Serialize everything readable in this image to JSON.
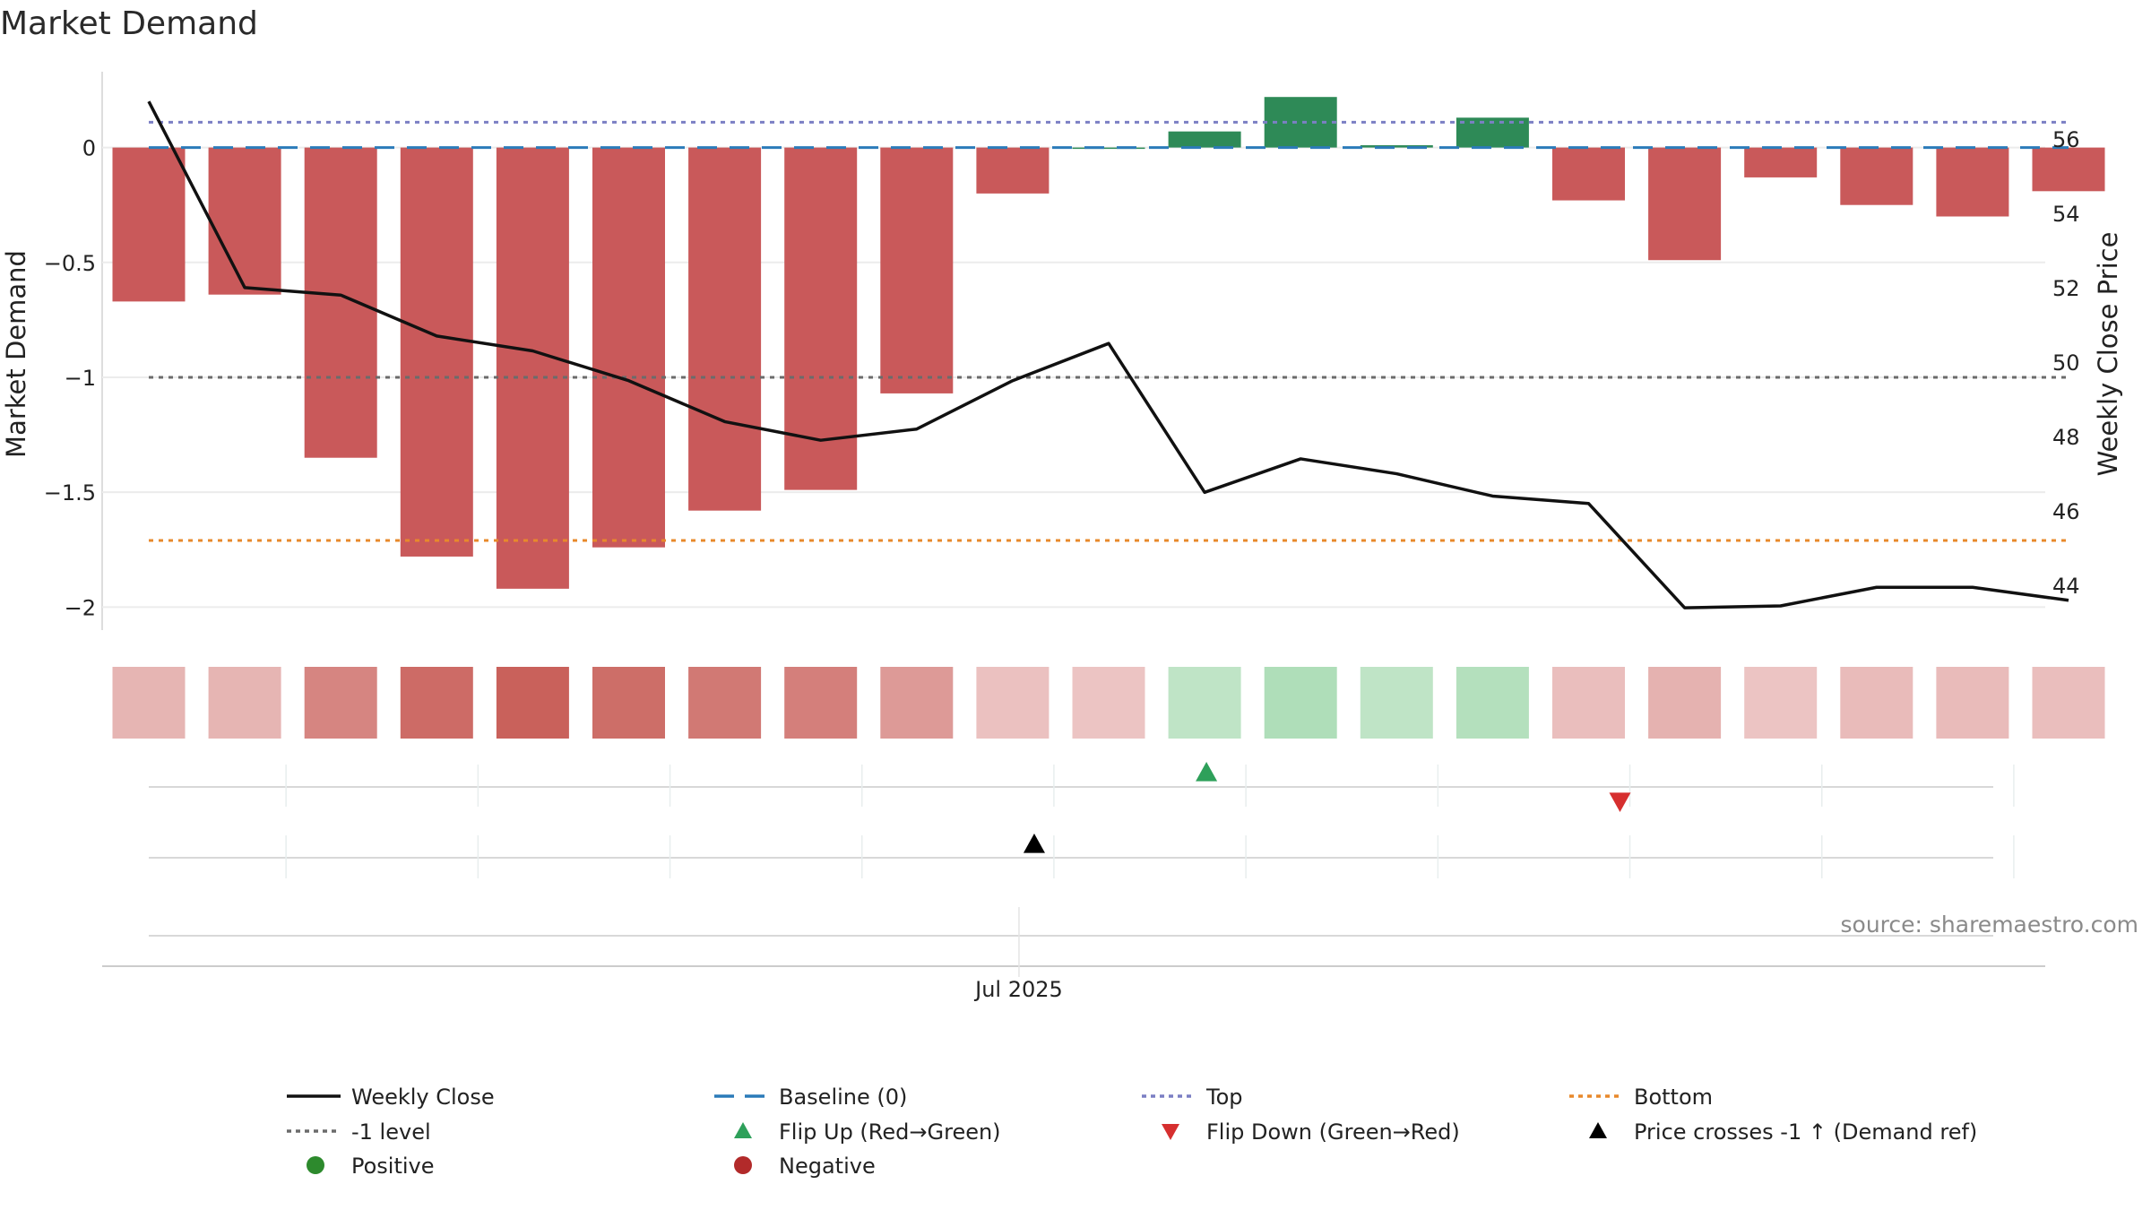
{
  "chart_data": {
    "type": "bar",
    "title": "Market Demand",
    "ylabel": "Market Demand",
    "y2label": "Weekly Close Price",
    "ylim": [
      -2.1,
      0.33
    ],
    "y2lim": [
      42.8,
      57.8
    ],
    "yticks": [
      {
        "v": 0,
        "t": "0"
      },
      {
        "v": -0.5,
        "t": "−0.5"
      },
      {
        "v": -1,
        "t": "−1"
      },
      {
        "v": -1.5,
        "t": "−1.5"
      },
      {
        "v": -2,
        "t": "−2"
      }
    ],
    "y2ticks": [
      {
        "v": 56,
        "t": "56"
      },
      {
        "v": 54,
        "t": "54"
      },
      {
        "v": 52,
        "t": "52"
      },
      {
        "v": 50,
        "t": "50"
      },
      {
        "v": 48,
        "t": "48"
      },
      {
        "v": 46,
        "t": "46"
      },
      {
        "v": 44,
        "t": "44"
      }
    ],
    "xtick_label": "Jul 2025",
    "xtick_index": 9.15,
    "grid": true,
    "legend_position": "bottom",
    "series": [
      {
        "name": "Market Demand",
        "type": "bar",
        "values": [
          -0.67,
          -0.64,
          -1.35,
          -1.78,
          -1.92,
          -1.74,
          -1.58,
          -1.49,
          -1.07,
          -0.2,
          0.0,
          0.07,
          0.22,
          0.01,
          0.13,
          -0.23,
          -0.49,
          -0.13,
          -0.25,
          -0.3,
          -0.19
        ]
      },
      {
        "name": "Weekly Close",
        "type": "line",
        "axis": "right",
        "values": [
          57.0,
          52.0,
          51.8,
          50.7,
          50.3,
          49.5,
          48.4,
          47.9,
          48.2,
          49.5,
          50.5,
          46.5,
          47.4,
          47.0,
          46.4,
          46.2,
          43.4,
          43.45,
          43.95,
          43.95,
          43.6
        ]
      },
      {
        "name": "Baseline (0)",
        "type": "hline",
        "value": 0
      },
      {
        "name": "Top",
        "type": "hline",
        "value": 0.11
      },
      {
        "name": "-1 level",
        "type": "hline",
        "value": -1
      },
      {
        "name": "Bottom",
        "type": "hline",
        "value": -1.71
      }
    ],
    "heat_strip": [
      -0.55,
      -0.55,
      -1.35,
      -1.78,
      -1.95,
      -1.74,
      -1.55,
      -1.45,
      -1.0,
      -0.35,
      -0.3,
      0.3,
      0.45,
      0.3,
      0.4,
      -0.4,
      -0.6,
      -0.3,
      -0.45,
      -0.45,
      -0.4
    ],
    "events": [
      {
        "name": "Flip Up (Red→Green)",
        "index": 11,
        "row": 1
      },
      {
        "name": "Flip Down (Green→Red)",
        "index": 15,
        "row": 1
      },
      {
        "name": "Price crosses -1 ↑ (Demand ref)",
        "index": 9.15,
        "row": 2
      }
    ],
    "colors": {
      "negative_bar": "#c9595a",
      "positive_bar": "#2e8a57",
      "line": "#111111",
      "baseline": "#2b7bb9",
      "top": "#7b7fc4",
      "minus1": "#6b6b6b",
      "bottom": "#e8892b",
      "flip_up": "#2ea05a",
      "flip_down": "#d62f2f",
      "cross": "#000000",
      "positive_dot": "#2d8a2d",
      "negative_dot": "#b22a2a"
    }
  },
  "legend": [
    {
      "label": "Weekly Close",
      "kind": "line",
      "color": "#111111",
      "dash": ""
    },
    {
      "label": "Baseline (0)",
      "kind": "line",
      "color": "#2b7bb9",
      "dash": "22,12"
    },
    {
      "label": "Top",
      "kind": "line",
      "color": "#7b7fc4",
      "dash": "5,5"
    },
    {
      "label": "Bottom",
      "kind": "line",
      "color": "#e8892b",
      "dash": "5,5"
    },
    {
      "label": "-1 level",
      "kind": "line",
      "color": "#6b6b6b",
      "dash": "5,5"
    },
    {
      "label": "Flip Up (Red→Green)",
      "kind": "tri-up",
      "color": "#2ea05a"
    },
    {
      "label": "Flip Down (Green→Red)",
      "kind": "tri-down",
      "color": "#d62f2f"
    },
    {
      "label": "Price crosses -1 ↑ (Demand ref)",
      "kind": "tri-up",
      "color": "#000000"
    },
    {
      "label": "Positive",
      "kind": "dot",
      "color": "#2d8a2d"
    },
    {
      "label": "Negative",
      "kind": "dot",
      "color": "#b22a2a"
    }
  ],
  "source": "source: sharemaestro.com"
}
